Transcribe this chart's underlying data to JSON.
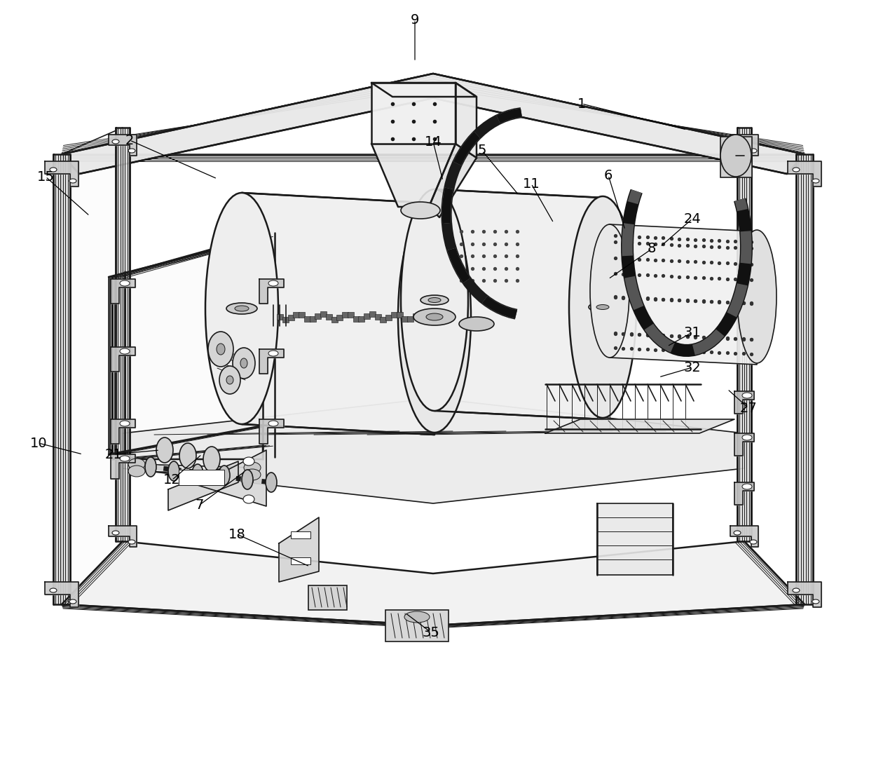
{
  "bg_color": "#ffffff",
  "line_color": "#1a1a1a",
  "lw_frame": 1.8,
  "lw_detail": 1.2,
  "lw_thin": 0.7,
  "label_fontsize": 14,
  "ref_labels": [
    [
      "1",
      830,
      148,
      980,
      185
    ],
    [
      "2",
      185,
      200,
      310,
      255
    ],
    [
      "5",
      688,
      215,
      740,
      278
    ],
    [
      "6",
      868,
      250,
      892,
      328
    ],
    [
      "7",
      285,
      720,
      350,
      672
    ],
    [
      "8",
      930,
      355,
      868,
      398
    ],
    [
      "9",
      592,
      28,
      592,
      88
    ],
    [
      "10",
      55,
      632,
      118,
      648
    ],
    [
      "11",
      758,
      262,
      790,
      318
    ],
    [
      "12",
      245,
      685,
      288,
      648
    ],
    [
      "14",
      618,
      202,
      632,
      258
    ],
    [
      "15",
      65,
      252,
      128,
      308
    ],
    [
      "18",
      338,
      762,
      442,
      808
    ],
    [
      "21",
      162,
      648,
      228,
      642
    ],
    [
      "24",
      988,
      312,
      942,
      352
    ],
    [
      "27",
      1068,
      582,
      1038,
      555
    ],
    [
      "31",
      988,
      474,
      952,
      494
    ],
    [
      "32",
      988,
      524,
      940,
      538
    ],
    [
      "35",
      615,
      902,
      578,
      874
    ]
  ]
}
